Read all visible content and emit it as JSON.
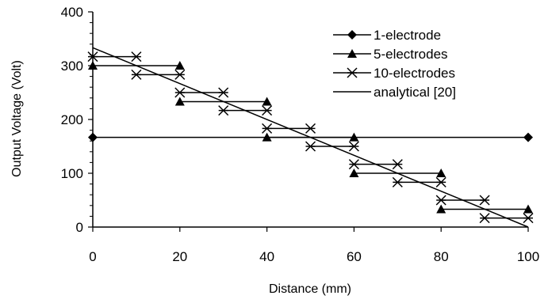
{
  "chart_data": {
    "type": "line",
    "xlabel": "Distance (mm)",
    "ylabel": "Output Voltage (Volt)",
    "xlim": [
      0,
      100
    ],
    "ylim": [
      0,
      400
    ],
    "x_ticks": [
      "0",
      "20",
      "40",
      "60",
      "80",
      "100"
    ],
    "y_ticks": [
      "0",
      "100",
      "200",
      "300",
      "400"
    ],
    "grid": false,
    "legend_position": "top-right",
    "series": [
      {
        "name": "1-electrode",
        "marker": "diamond",
        "step_segments": [
          [
            0,
            100,
            166.7
          ]
        ],
        "marker_points": [
          [
            0,
            166.7
          ],
          [
            100,
            166.7
          ]
        ]
      },
      {
        "name": "5-electrodes",
        "marker": "triangle",
        "step_segments": [
          [
            0,
            20,
            300
          ],
          [
            20,
            40,
            233
          ],
          [
            40,
            60,
            166.7
          ],
          [
            60,
            80,
            100
          ],
          [
            80,
            100,
            33
          ]
        ],
        "marker_points": [
          [
            0,
            300
          ],
          [
            20,
            300
          ],
          [
            20,
            233
          ],
          [
            40,
            233
          ],
          [
            40,
            166.7
          ],
          [
            60,
            166.7
          ],
          [
            60,
            100
          ],
          [
            80,
            100
          ],
          [
            80,
            33
          ],
          [
            100,
            33
          ]
        ]
      },
      {
        "name": "10-electrodes",
        "marker": "asterisk",
        "step_segments": [
          [
            0,
            10,
            316.7
          ],
          [
            10,
            20,
            283.3
          ],
          [
            20,
            30,
            250
          ],
          [
            30,
            40,
            216.7
          ],
          [
            40,
            50,
            183.3
          ],
          [
            50,
            60,
            150
          ],
          [
            60,
            70,
            116.7
          ],
          [
            70,
            80,
            83.3
          ],
          [
            80,
            90,
            50
          ],
          [
            90,
            100,
            16.7
          ]
        ],
        "marker_points": [
          [
            0,
            316.7
          ],
          [
            10,
            316.7
          ],
          [
            10,
            283.3
          ],
          [
            20,
            283.3
          ],
          [
            20,
            250
          ],
          [
            30,
            250
          ],
          [
            30,
            216.7
          ],
          [
            40,
            216.7
          ],
          [
            40,
            183.3
          ],
          [
            50,
            183.3
          ],
          [
            50,
            150
          ],
          [
            60,
            150
          ],
          [
            60,
            116.7
          ],
          [
            70,
            116.7
          ],
          [
            70,
            83.3
          ],
          [
            80,
            83.3
          ],
          [
            80,
            50
          ],
          [
            90,
            50
          ],
          [
            90,
            16.7
          ],
          [
            100,
            16.7
          ]
        ]
      },
      {
        "name": "analytical [20]",
        "marker": "none",
        "points": [
          [
            0,
            333.3
          ],
          [
            100,
            0
          ]
        ]
      }
    ]
  }
}
